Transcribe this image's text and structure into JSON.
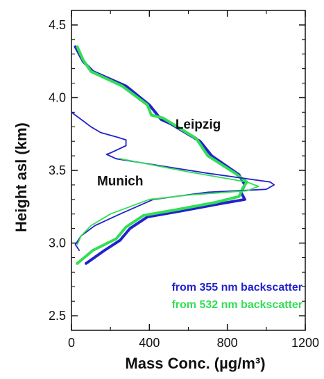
{
  "chart_data": {
    "type": "line",
    "title": "",
    "xlabel": "Mass Conc. (µg/m³)",
    "ylabel": "Height asl (km)",
    "xlim": [
      0,
      1200
    ],
    "ylim": [
      2.4,
      4.6
    ],
    "xticks": [
      0,
      400,
      800,
      1200
    ],
    "xtick_labels": [
      "0",
      "400",
      "800",
      "1200"
    ],
    "yticks": [
      2.5,
      3.0,
      3.5,
      4.0,
      4.5
    ],
    "ytick_labels": [
      "2.5",
      "3.0",
      "3.5",
      "4.0",
      "4.5"
    ],
    "grid": false,
    "legend_position": "bottom-right",
    "legend": [
      {
        "label": "from 355 nm backscatter",
        "color": "#2222cc"
      },
      {
        "label": "from 532 nm backscatter",
        "color": "#33dd55"
      }
    ],
    "annotations": [
      {
        "text": "Leipzig",
        "x": 650,
        "y": 3.82
      },
      {
        "text": "Munich",
        "x": 250,
        "y": 3.43
      }
    ],
    "series": [
      {
        "group": "Leipzig",
        "style": "thick",
        "color": "#2222cc",
        "x": [
          20,
          60,
          110,
          280,
          400,
          460,
          510,
          660,
          720,
          860,
          890,
          870,
          890,
          760,
          560,
          390,
          300,
          250,
          170,
          75
        ],
        "y": [
          4.35,
          4.25,
          4.18,
          4.08,
          3.95,
          3.85,
          3.82,
          3.7,
          3.6,
          3.47,
          3.4,
          3.35,
          3.3,
          3.27,
          3.22,
          3.18,
          3.1,
          3.02,
          2.95,
          2.86
        ]
      },
      {
        "group": "Leipzig",
        "style": "thick",
        "color": "#33dd55",
        "x": [
          30,
          60,
          100,
          260,
          390,
          410,
          470,
          640,
          700,
          840,
          900,
          880,
          860,
          740,
          540,
          370,
          280,
          230,
          110,
          30
        ],
        "y": [
          4.35,
          4.26,
          4.18,
          4.08,
          3.95,
          3.88,
          3.86,
          3.72,
          3.6,
          3.48,
          3.42,
          3.38,
          3.32,
          3.28,
          3.23,
          3.19,
          3.11,
          3.03,
          2.95,
          2.86
        ]
      },
      {
        "group": "Munich",
        "style": "thin",
        "color": "#2222cc",
        "x": [
          0,
          60,
          100,
          150,
          230,
          280,
          280,
          200,
          180,
          230,
          700,
          1020,
          1040,
          1000,
          700,
          420,
          250,
          120,
          50,
          20,
          40
        ],
        "y": [
          3.9,
          3.84,
          3.8,
          3.76,
          3.73,
          3.71,
          3.67,
          3.62,
          3.61,
          3.58,
          3.48,
          3.42,
          3.4,
          3.37,
          3.35,
          3.3,
          3.2,
          3.12,
          3.05,
          2.99,
          2.95
        ]
      },
      {
        "group": "Munich",
        "style": "thin",
        "color": "#33dd55",
        "x": [
          250,
          600,
          900,
          960,
          900,
          600,
          400,
          200,
          100,
          50,
          30
        ],
        "y": [
          3.58,
          3.49,
          3.42,
          3.39,
          3.36,
          3.33,
          3.3,
          3.2,
          3.12,
          3.05,
          2.99
        ]
      }
    ]
  }
}
